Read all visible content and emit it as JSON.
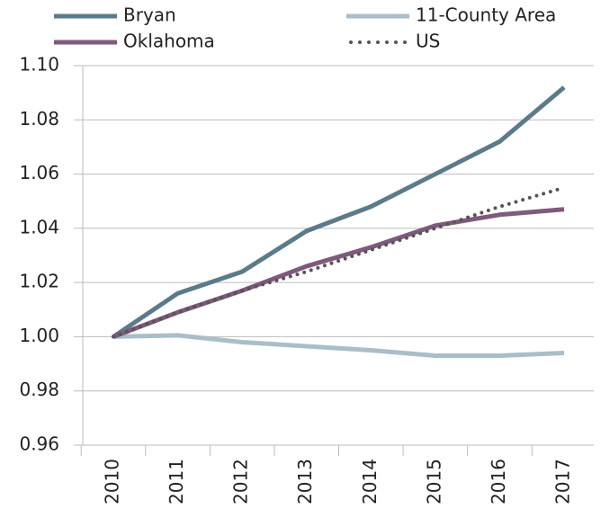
{
  "chart_data": {
    "type": "line",
    "categories": [
      "2010",
      "2011",
      "2012",
      "2013",
      "2014",
      "2015",
      "2016",
      "2017"
    ],
    "series": [
      {
        "name": "Bryan",
        "color": "#5b7b8b",
        "values": [
          1.0,
          1.016,
          1.024,
          1.039,
          1.048,
          1.06,
          1.072,
          1.092
        ]
      },
      {
        "name": "11-County Area",
        "color": "#a9bec8",
        "values": [
          1.0,
          1.0005,
          0.998,
          0.9965,
          0.995,
          0.993,
          0.993,
          0.994
        ]
      },
      {
        "name": "Oklahoma",
        "color": "#7e5a7b",
        "values": [
          1.0,
          1.009,
          1.017,
          1.026,
          1.033,
          1.041,
          1.045,
          1.047
        ]
      },
      {
        "name": "US",
        "color": "#555555",
        "style": "dotted",
        "values": [
          1.0,
          1.009,
          1.017,
          1.024,
          1.032,
          1.04,
          1.048,
          1.055
        ]
      }
    ],
    "ylim": [
      0.96,
      1.1
    ],
    "yticks": [
      0.96,
      0.98,
      {
        "value": 1.0,
        "label": "1.00"
      },
      1.02,
      1.04,
      1.06,
      1.08,
      {
        "value": 1.1,
        "label": "1.10"
      }
    ],
    "grid": true
  }
}
